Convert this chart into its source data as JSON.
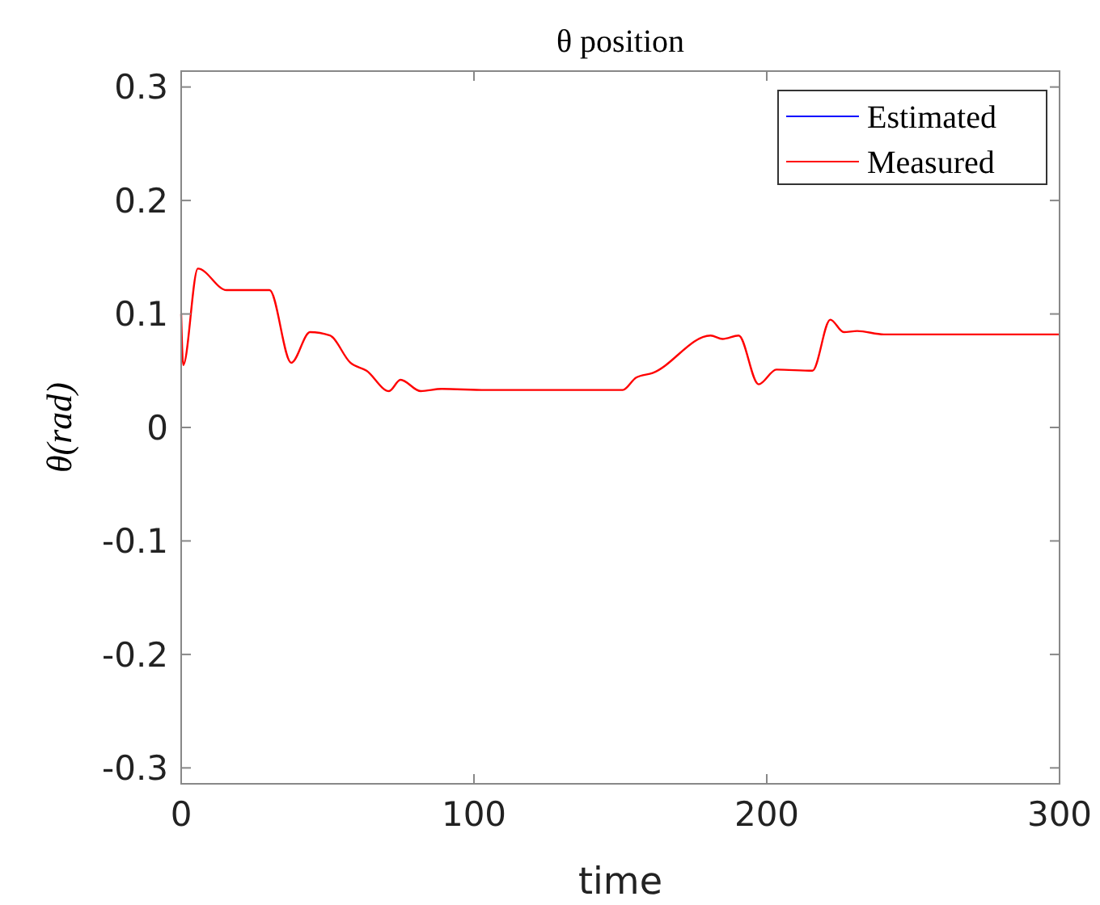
{
  "chart_data": {
    "type": "line",
    "title": "θ position",
    "xlabel": "time",
    "ylabel": "θ(rad)",
    "xlim": [
      0,
      300
    ],
    "xticks": [
      0,
      100,
      200,
      300
    ],
    "ylim": [
      -0.314,
      0.314
    ],
    "yticks": [
      -0.3,
      -0.2,
      -0.1,
      0,
      0.1,
      0.2,
      0.3
    ],
    "x": [
      0,
      0.7,
      5.7,
      15.5,
      30.2,
      37.6,
      44,
      50.8,
      57.8,
      63.3,
      71,
      74.9,
      81.8,
      89,
      104,
      150.8,
      155.4,
      161,
      180.8,
      184.9,
      190.4,
      197.2,
      203.3,
      215.6,
      221.7,
      226.3,
      230.9,
      240,
      300
    ],
    "series": [
      {
        "name": "Estimated",
        "color": "#0000ff",
        "values": [
          null,
          null,
          null,
          null,
          null,
          null,
          null,
          null,
          null,
          null,
          null,
          null,
          null,
          null,
          null,
          null,
          null,
          null,
          null,
          null,
          null,
          null,
          null,
          null,
          null,
          null,
          null,
          null,
          null
        ]
      },
      {
        "name": "Measured",
        "color": "#ff0000",
        "values": [
          0.1,
          0.055,
          0.14,
          0.121,
          0.121,
          0.057,
          0.084,
          0.081,
          0.057,
          0.05,
          0.032,
          0.042,
          0.032,
          0.034,
          0.033,
          0.033,
          0.044,
          0.048,
          0.081,
          0.078,
          0.081,
          0.038,
          0.051,
          0.05,
          0.095,
          0.084,
          0.085,
          0.082,
          0.082
        ]
      }
    ],
    "legend": "top right",
    "grid": false,
    "line_style": "solid",
    "marker": "none"
  }
}
